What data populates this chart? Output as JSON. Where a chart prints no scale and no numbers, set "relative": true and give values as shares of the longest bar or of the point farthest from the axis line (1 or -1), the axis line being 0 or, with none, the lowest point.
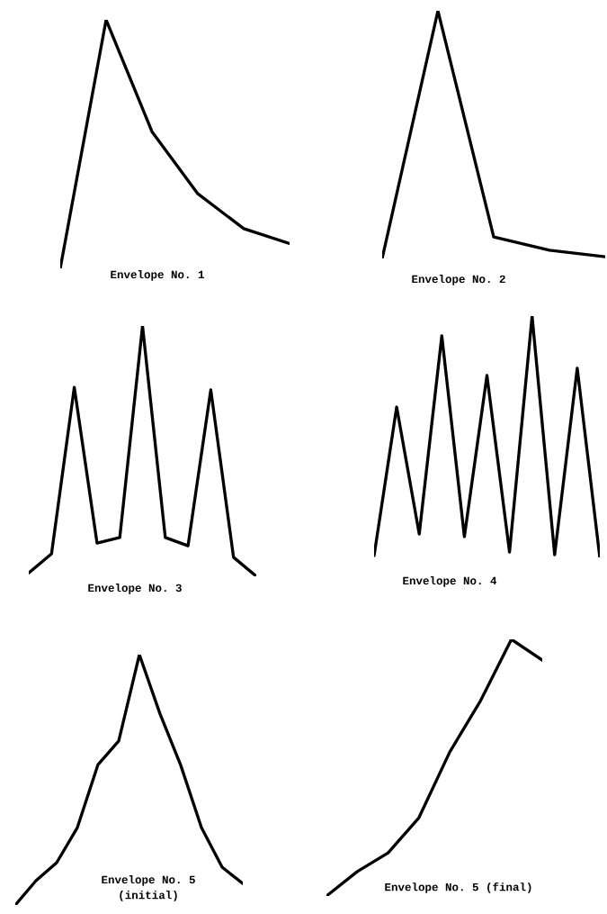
{
  "chart_data": [
    {
      "type": "line",
      "relative": true,
      "title": "Envelope No. 1",
      "color": "#000000",
      "categories": [
        null,
        null,
        null,
        null,
        null,
        null
      ],
      "values": [
        0,
        1,
        0.55,
        0.3,
        0.16,
        0.1
      ]
    },
    {
      "type": "line",
      "relative": true,
      "title": "Envelope No. 2",
      "color": "#000000",
      "categories": [
        null,
        null,
        null,
        null,
        null
      ],
      "values": [
        0,
        1,
        0.087,
        0.033,
        0.007
      ]
    },
    {
      "type": "line",
      "relative": true,
      "title": "Envelope No. 3",
      "color": "#000000",
      "categories": [
        null,
        null,
        null,
        null,
        null,
        null,
        null,
        null,
        null,
        null,
        null
      ],
      "values": [
        0.014,
        0.09,
        0.755,
        0.133,
        0.155,
        1,
        0.155,
        0.122,
        0.745,
        0.076,
        0
      ]
    },
    {
      "type": "line",
      "relative": true,
      "title": "Envelope No. 4",
      "color": "#000000",
      "categories": [
        null,
        null,
        null,
        null,
        null,
        null,
        null,
        null,
        null,
        null,
        null
      ],
      "values": [
        0.007,
        0.623,
        0.097,
        0.918,
        0.086,
        0.754,
        0.022,
        1,
        0.011,
        0.784,
        0
      ]
    },
    {
      "type": "line",
      "relative": true,
      "title": "Envelope No. 5\n(initial)",
      "color": "#000000",
      "categories": [
        null,
        null,
        null,
        null,
        null,
        null,
        null,
        null,
        null,
        null,
        null,
        null
      ],
      "values": [
        0,
        0.097,
        0.169,
        0.309,
        0.561,
        0.655,
        1,
        0.763,
        0.558,
        0.309,
        0.151,
        0.086
      ]
    },
    {
      "type": "line",
      "relative": true,
      "title": "Envelope No. 5 (final)",
      "color": "#000000",
      "categories": [
        null,
        null,
        null,
        null,
        null,
        null,
        null,
        null
      ],
      "values": [
        0,
        0.095,
        0.168,
        0.305,
        0.561,
        0.761,
        1,
        0.919
      ]
    }
  ]
}
